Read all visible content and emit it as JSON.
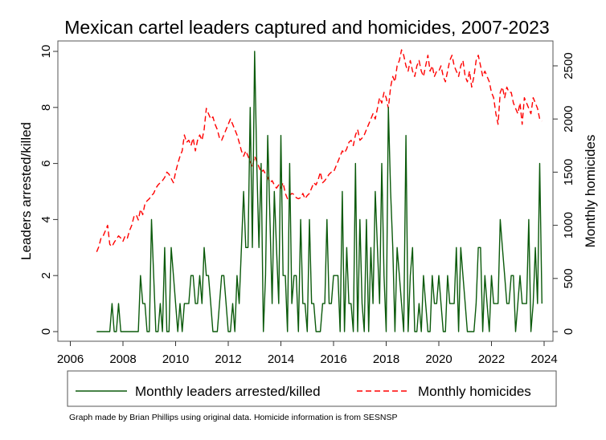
{
  "chart_data": {
    "type": "line",
    "title": "Mexican cartel leaders captured and homicides, 2007-2023",
    "xlabel": "",
    "ylabel": "Leaders arrested/killed",
    "ylabel_right": "Monthly homicides",
    "xlim": [
      2006,
      2024
    ],
    "ylim": [
      0,
      10
    ],
    "ylim_right": [
      0,
      2700
    ],
    "x_ticks": [
      "2006",
      "2008",
      "2010",
      "2012",
      "2014",
      "2016",
      "2018",
      "2020",
      "2022",
      "2024"
    ],
    "y_ticks": [
      "0",
      "2",
      "4",
      "6",
      "8",
      "10"
    ],
    "y_ticks_right": [
      "0",
      "500",
      "1000",
      "1500",
      "2000",
      "2500"
    ],
    "grid": false,
    "legend_position": "bottom",
    "x_start": "2007-01",
    "x_frequency": "monthly",
    "series": [
      {
        "name": "Monthly leaders arrested/killed",
        "axis": "left",
        "color": "#0b5a0b",
        "style": "solid",
        "values": [
          0,
          0,
          0,
          0,
          0,
          0,
          0,
          1,
          0,
          0,
          1,
          0,
          0,
          0,
          0,
          0,
          0,
          0,
          0,
          0,
          2,
          1,
          1,
          0,
          0,
          4,
          2,
          0,
          0,
          1,
          0,
          3,
          0,
          0,
          3,
          2,
          1,
          0,
          1,
          0,
          1,
          1,
          1,
          2,
          2,
          1,
          1,
          2,
          1,
          3,
          2,
          2,
          1,
          0,
          0,
          0,
          1,
          2,
          2,
          1,
          0,
          0,
          1,
          0,
          2,
          1,
          3,
          5,
          3,
          3,
          8,
          3,
          10,
          6,
          3,
          6,
          0,
          2,
          7,
          4,
          1,
          5,
          3,
          1,
          7,
          2,
          2,
          0,
          6,
          1,
          2,
          2,
          0,
          4,
          1,
          1,
          0,
          4,
          1,
          1,
          0,
          0,
          0,
          1,
          1,
          4,
          1,
          1,
          2,
          2,
          2,
          0,
          5,
          0,
          3,
          1,
          1,
          0,
          6,
          0,
          4,
          1,
          0,
          4,
          0,
          3,
          1,
          5,
          3,
          1,
          6,
          2,
          0,
          8,
          5,
          3,
          0,
          3,
          2,
          1,
          0,
          7,
          0,
          2,
          3,
          0,
          0,
          1,
          0,
          2,
          1,
          0,
          0,
          2,
          1,
          1,
          2,
          1,
          0,
          0,
          2,
          1,
          1,
          1,
          3,
          0,
          3,
          2,
          1,
          0,
          0,
          0,
          0,
          1,
          3,
          3,
          0,
          2,
          1,
          0,
          2,
          1,
          1,
          1,
          4,
          3,
          2,
          1,
          1,
          2,
          2,
          0,
          1,
          2,
          1,
          1,
          1,
          4,
          0,
          1,
          3,
          1,
          6,
          1
        ]
      },
      {
        "name": "Monthly homicides",
        "axis": "right",
        "color": "#ff0000",
        "style": "dashed",
        "values": [
          750,
          800,
          880,
          900,
          950,
          1000,
          820,
          800,
          840,
          870,
          900,
          880,
          850,
          900,
          880,
          950,
          1000,
          1080,
          1100,
          1050,
          1150,
          1100,
          1200,
          1230,
          1250,
          1280,
          1300,
          1350,
          1380,
          1400,
          1420,
          1450,
          1500,
          1480,
          1440,
          1400,
          1500,
          1580,
          1650,
          1700,
          1850,
          1780,
          1800,
          1750,
          1820,
          1700,
          1800,
          1850,
          1800,
          1900,
          2100,
          2050,
          2000,
          2020,
          1950,
          1900,
          1820,
          1800,
          1850,
          1900,
          1950,
          2000,
          1950,
          1900,
          1850,
          1780,
          1700,
          1650,
          1700,
          1650,
          1600,
          1550,
          1650,
          1600,
          1550,
          1500,
          1520,
          1480,
          1450,
          1400,
          1420,
          1380,
          1350,
          1380,
          1350,
          1400,
          1300,
          1250,
          1280,
          1300,
          1290,
          1260,
          1250,
          1260,
          1300,
          1250,
          1280,
          1300,
          1350,
          1400,
          1380,
          1430,
          1500,
          1400,
          1420,
          1450,
          1480,
          1500,
          1500,
          1550,
          1600,
          1650,
          1700,
          1680,
          1720,
          1780,
          1800,
          1750,
          1850,
          1900,
          1800,
          1820,
          1850,
          1900,
          1950,
          2000,
          2050,
          2000,
          2100,
          2200,
          2150,
          2250,
          2200,
          2100,
          2300,
          2400,
          2350,
          2500,
          2550,
          2650,
          2600,
          2500,
          2450,
          2550,
          2450,
          2400,
          2500,
          2550,
          2450,
          2400,
          2500,
          2600,
          2450,
          2500,
          2400,
          2450,
          2450,
          2500,
          2400,
          2350,
          2450,
          2550,
          2600,
          2500,
          2450,
          2400,
          2500,
          2550,
          2400,
          2350,
          2450,
          2300,
          2400,
          2550,
          2600,
          2500,
          2400,
          2450,
          2400,
          2350,
          2250,
          2200,
          2050,
          1950,
          2250,
          2300,
          2200,
          2300,
          2250,
          2250,
          2150,
          2100,
          2050,
          2150,
          1950,
          2200,
          2150,
          2100,
          2050,
          2200,
          2150,
          2100,
          2000,
          1980
        ]
      }
    ]
  },
  "footer": "Graph made by Brian Phillips using original data. Homicide information is from SESNSP"
}
